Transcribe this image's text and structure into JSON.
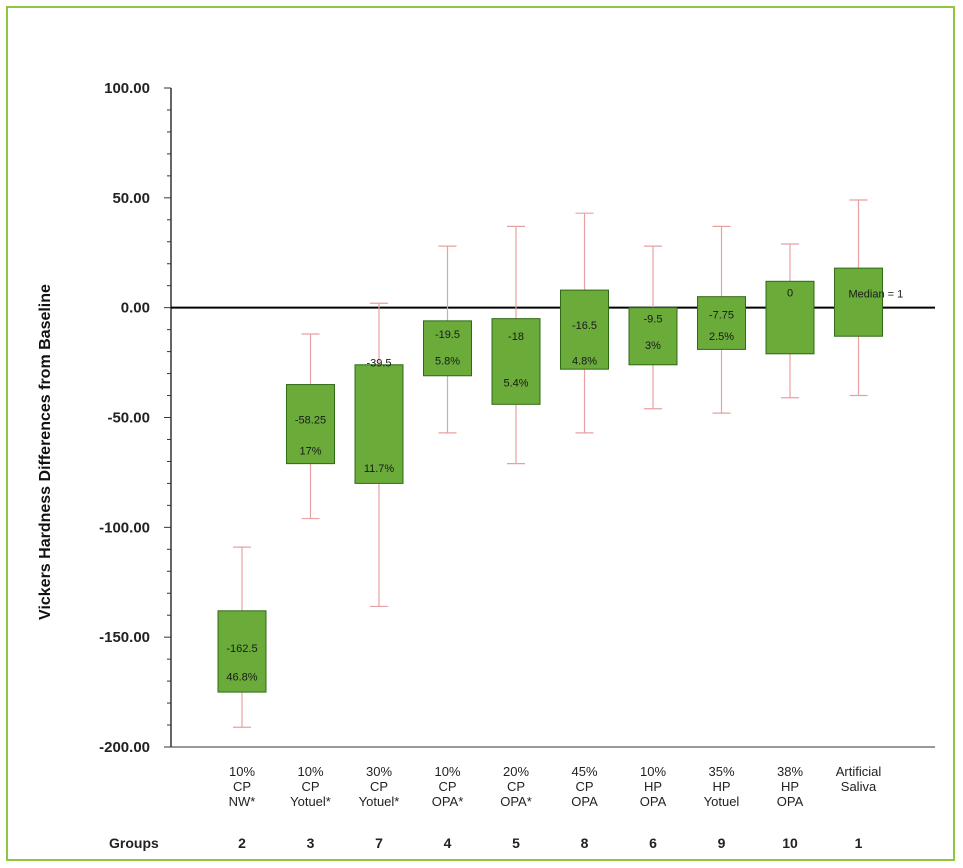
{
  "chart_data": {
    "type": "box",
    "ylabel": "Vickers Hardness Differences from Baseline",
    "ylim": [
      -200,
      100
    ],
    "yticks": [
      100,
      50,
      0,
      -50,
      -100,
      -150,
      -200
    ],
    "ytick_labels": [
      "100.00",
      "50.00",
      "0.00",
      "-50.00",
      "-100.00",
      "-150.00",
      "-200.00"
    ],
    "reference_line": 0,
    "groups_label": "Groups",
    "boxes": [
      {
        "label": [
          "10%",
          "CP",
          "NW*"
        ],
        "group": "2",
        "whisker_low": -191,
        "q1": -175,
        "q3": -138,
        "whisker_high": -109,
        "median_text": "-162.5",
        "pct_text": "46.8%",
        "median_y": -155,
        "pct_y": -168
      },
      {
        "label": [
          "10%",
          "CP",
          "Yotuel*"
        ],
        "group": "3",
        "whisker_low": -96,
        "q1": -71,
        "q3": -35,
        "whisker_high": -12,
        "median_text": "-58.25",
        "pct_text": "17%",
        "median_y": -51,
        "pct_y": -65
      },
      {
        "label": [
          "30%",
          "CP",
          "Yotuel*"
        ],
        "group": "7",
        "whisker_low": -136,
        "q1": -80,
        "q3": -26,
        "whisker_high": 2,
        "median_text": "-39.5",
        "pct_text": "11.7%",
        "median_y": -25,
        "pct_y": -73
      },
      {
        "label": [
          "10%",
          "CP",
          "OPA*"
        ],
        "group": "4",
        "whisker_low": -57,
        "q1": -31,
        "q3": -6,
        "whisker_high": 28,
        "median_text": "-19.5",
        "pct_text": "5.8%",
        "median_y": -12,
        "pct_y": -24
      },
      {
        "label": [
          "20%",
          "CP",
          "OPA*"
        ],
        "group": "5",
        "whisker_low": -71,
        "q1": -44,
        "q3": -5,
        "whisker_high": 37,
        "median_text": "-18",
        "pct_text": "5.4%",
        "median_y": -13,
        "pct_y": -34
      },
      {
        "label": [
          "45%",
          "CP",
          "OPA"
        ],
        "group": "8",
        "whisker_low": -57,
        "q1": -28,
        "q3": 8,
        "whisker_high": 43,
        "median_text": "-16.5",
        "pct_text": "4.8%",
        "median_y": -8,
        "pct_y": -24
      },
      {
        "label": [
          "10%",
          "HP",
          "OPA"
        ],
        "group": "6",
        "whisker_low": -46,
        "q1": -26,
        "q3": 0,
        "whisker_high": 28,
        "median_text": "-9.5",
        "pct_text": "3%",
        "median_y": -5,
        "pct_y": -17
      },
      {
        "label": [
          "35%",
          "HP",
          "Yotuel"
        ],
        "group": "9",
        "whisker_low": -48,
        "q1": -19,
        "q3": 5,
        "whisker_high": 37,
        "median_text": "-7.75",
        "pct_text": "2.5%",
        "median_y": -3,
        "pct_y": -13
      },
      {
        "label": [
          "38%",
          "HP",
          "OPA"
        ],
        "group": "10",
        "whisker_low": -41,
        "q1": -21,
        "q3": 12,
        "whisker_high": 29,
        "median_text": "0",
        "pct_text": "",
        "median_y": 7,
        "pct_y": 0
      },
      {
        "label": [
          "Artificial",
          "Saliva"
        ],
        "group": "1",
        "whisker_low": -40,
        "q1": -13,
        "q3": 18,
        "whisker_high": 49,
        "median_text": "",
        "pct_text": "",
        "median_y": 0,
        "pct_y": 0
      }
    ],
    "annotation": "Median = 1"
  },
  "colors": {
    "box_fill": "#6aab3a",
    "box_stroke": "#2f6a14",
    "whisker": "#e8a0a0",
    "axis": "#333333",
    "zero_line": "#000000",
    "frame": "#8fc63f"
  }
}
